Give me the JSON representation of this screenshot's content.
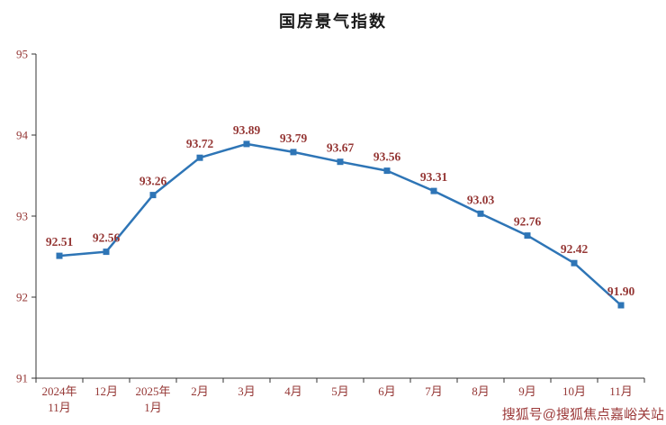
{
  "chart_data": {
    "type": "line",
    "title": "国房景气指数",
    "categories": [
      "2024年\n11月",
      "12月",
      "2025年\n1月",
      "2月",
      "3月",
      "4月",
      "5月",
      "6月",
      "7月",
      "8月",
      "9月",
      "10月",
      "11月"
    ],
    "values": [
      92.51,
      92.56,
      93.26,
      93.72,
      93.89,
      93.79,
      93.67,
      93.56,
      93.31,
      93.03,
      92.76,
      92.42,
      91.9
    ],
    "labels": [
      "92.51",
      "92.56",
      "93.26",
      "93.72",
      "93.89",
      "93.79",
      "93.67",
      "93.56",
      "93.31",
      "93.03",
      "92.76",
      "92.42",
      "91.90"
    ],
    "ylim": [
      91,
      95
    ],
    "yticks": [
      95,
      94,
      93,
      92,
      91
    ],
    "line_color": "#2E75B6",
    "label_color": "#953735",
    "axis_color": "#333333",
    "grid": false,
    "legend": "none"
  },
  "watermark": {
    "text": "搜狐号@搜狐焦点嘉峪关站"
  }
}
